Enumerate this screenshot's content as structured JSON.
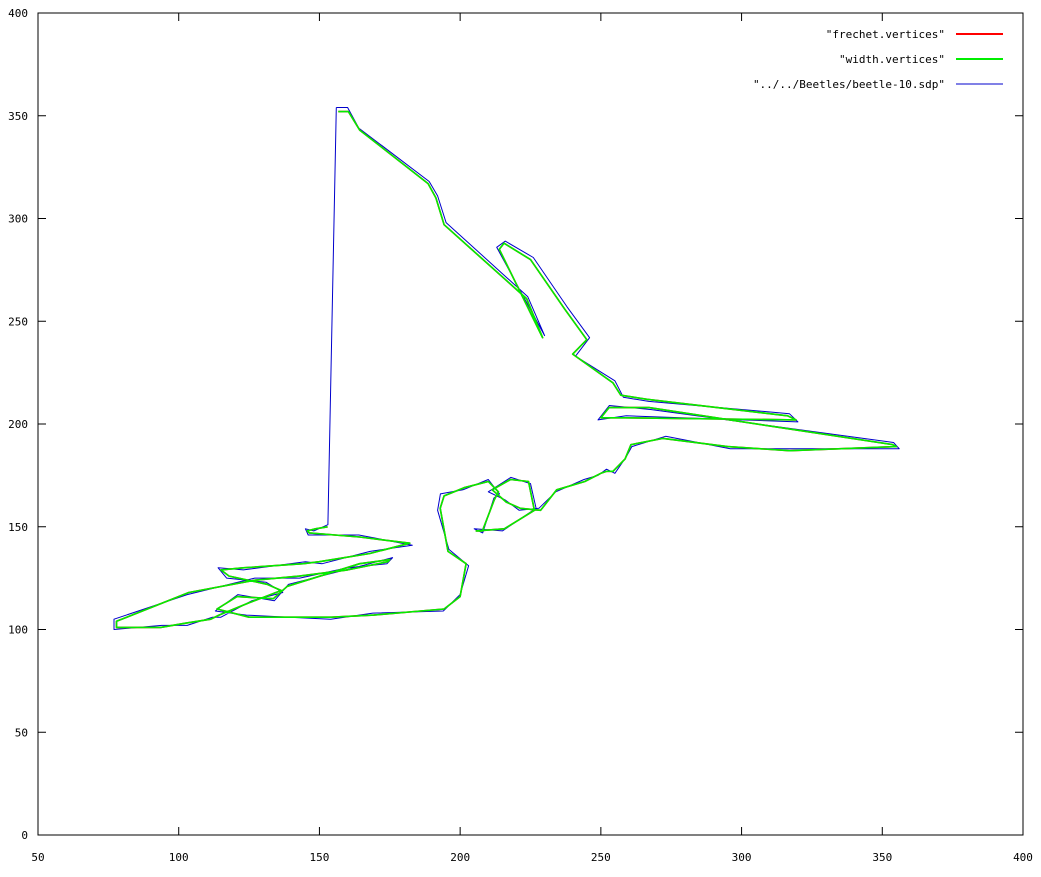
{
  "chart_data": {
    "type": "line",
    "title": "",
    "xlabel": "",
    "ylabel": "",
    "xlim": [
      50,
      400
    ],
    "ylim": [
      0,
      400
    ],
    "x_ticks": [
      50,
      100,
      150,
      200,
      250,
      300,
      350,
      400
    ],
    "y_ticks": [
      0,
      50,
      100,
      150,
      200,
      250,
      300,
      350,
      400
    ],
    "grid": false,
    "legend_position": "top-right",
    "series": [
      {
        "name": "\"frechet.vertices\"",
        "color": "#ff0000",
        "x": [
          156.7,
          160.3,
          164.3,
          188.6,
          191.4,
          194.3,
          223.6,
          229.3,
          213.9,
          215.6,
          225.0,
          237.1,
          245.0,
          240.0,
          254.3,
          257.1,
          266.4,
          316.4,
          319.3,
          258.6,
          250.0,
          252.9,
          267.1,
          353.6,
          355.0,
          317.1,
          295.0,
          272.1,
          260.7,
          258.6,
          254.3,
          252.1,
          250.0,
          244.3,
          234.3,
          228.6,
          221.4,
          216.4,
          211.4,
          217.9,
          224.3,
          226.4,
          215.7,
          205.7,
          207.9,
          212.1,
          213.6,
          210.0,
          201.4,
          194.3,
          192.9,
          195.7,
          202.1,
          200.0,
          194.3,
          169.3,
          154.3,
          125.0,
          113.6,
          120.7,
          133.6,
          138.6,
          164.3,
          175.0,
          174.3,
          160.0,
          142.9,
          127.1,
          103.6,
          77.9,
          77.9,
          93.6,
          102.1,
          111.4,
          114.3,
          125.0,
          136.4,
          131.4,
          117.9,
          115.0,
          122.9,
          144.3,
          150.0,
          167.9,
          182.1,
          164.3,
          146.4,
          145.7,
          148.6,
          152.9
        ],
        "y": [
          352.0,
          352.0,
          343.0,
          317.0,
          310.0,
          297.0,
          261.0,
          242.0,
          285.0,
          288.0,
          280.0,
          256.0,
          241.0,
          234.0,
          220.0,
          214.0,
          212.0,
          204.0,
          202.0,
          203.0,
          203.0,
          208.0,
          208.0,
          190.0,
          189.0,
          187.0,
          189.0,
          193.0,
          190.0,
          183.0,
          177.0,
          177.0,
          176.0,
          172.0,
          168.0,
          158.0,
          159.0,
          162.0,
          168.0,
          173.0,
          172.0,
          158.0,
          149.0,
          148.0,
          148.0,
          163.0,
          167.0,
          172.0,
          169.0,
          165.0,
          159.0,
          138.0,
          132.0,
          116.0,
          110.0,
          107.0,
          106.0,
          106.0,
          110.0,
          116.0,
          115.0,
          121.0,
          132.0,
          134.0,
          133.0,
          129.0,
          126.0,
          124.0,
          118.0,
          104.0,
          101.0,
          101.0,
          103.0,
          105.0,
          107.0,
          113.0,
          119.0,
          122.0,
          126.0,
          129.0,
          130.0,
          132.0,
          133.0,
          137.0,
          142.0,
          145.0,
          147.0,
          148.0,
          149.0,
          150.0
        ]
      },
      {
        "name": "\"width.vertices\"",
        "color": "#00ee00",
        "x": [
          156.7,
          160.3,
          164.3,
          188.6,
          191.4,
          194.3,
          223.6,
          229.3,
          213.9,
          215.6,
          225.0,
          237.1,
          245.0,
          240.0,
          254.3,
          257.1,
          266.4,
          316.4,
          319.3,
          258.6,
          250.0,
          252.9,
          267.1,
          353.6,
          355.0,
          317.1,
          295.0,
          272.1,
          260.7,
          258.6,
          254.3,
          252.1,
          250.0,
          244.3,
          234.3,
          228.6,
          221.4,
          216.4,
          211.4,
          217.9,
          224.3,
          226.4,
          215.7,
          205.7,
          207.9,
          212.1,
          213.6,
          210.0,
          201.4,
          194.3,
          192.9,
          195.7,
          202.1,
          200.0,
          194.3,
          169.3,
          154.3,
          125.0,
          113.6,
          120.7,
          133.6,
          138.6,
          164.3,
          175.0,
          174.3,
          160.0,
          142.9,
          127.1,
          103.6,
          77.9,
          77.9,
          93.6,
          102.1,
          111.4,
          114.3,
          125.0,
          136.4,
          131.4,
          117.9,
          115.0,
          122.9,
          144.3,
          150.0,
          167.9,
          182.1,
          164.3,
          146.4,
          145.7,
          148.6,
          152.9
        ],
        "y": [
          352.0,
          352.0,
          343.0,
          317.0,
          310.0,
          297.0,
          261.0,
          242.0,
          285.0,
          288.0,
          280.0,
          256.0,
          241.0,
          234.0,
          220.0,
          214.0,
          212.0,
          204.0,
          202.0,
          203.0,
          203.0,
          208.0,
          208.0,
          190.0,
          189.0,
          187.0,
          189.0,
          193.0,
          190.0,
          183.0,
          177.0,
          177.0,
          176.0,
          172.0,
          168.0,
          158.0,
          159.0,
          162.0,
          168.0,
          173.0,
          172.0,
          158.0,
          149.0,
          148.0,
          148.0,
          163.0,
          167.0,
          172.0,
          169.0,
          165.0,
          159.0,
          138.0,
          132.0,
          116.0,
          110.0,
          107.0,
          106.0,
          106.0,
          110.0,
          116.0,
          115.0,
          121.0,
          132.0,
          134.0,
          133.0,
          129.0,
          126.0,
          124.0,
          118.0,
          104.0,
          101.0,
          101.0,
          103.0,
          105.0,
          107.0,
          113.0,
          119.0,
          122.0,
          126.0,
          129.0,
          130.0,
          132.0,
          133.0,
          137.0,
          142.0,
          145.0,
          147.0,
          148.0,
          149.0,
          150.0
        ]
      },
      {
        "name": "\"../../Beetles/beetle-10.sdp\"",
        "color": "#0000cc",
        "x": [
          156.0,
          160.0,
          164.0,
          189.0,
          192.0,
          195.0,
          224.0,
          230.0,
          213.0,
          216.0,
          226.0,
          238.0,
          246.0,
          241.0,
          255.0,
          258.0,
          267.0,
          317.0,
          320.0,
          259.0,
          249.0,
          253.0,
          268.0,
          354.0,
          356.0,
          318.0,
          296.0,
          273.0,
          261.0,
          259.0,
          255.0,
          252.0,
          249.0,
          244.0,
          234.0,
          228.0,
          221.0,
          216.0,
          210.0,
          218.0,
          225.0,
          227.0,
          215.0,
          205.0,
          208.0,
          212.0,
          214.0,
          210.0,
          201.0,
          193.0,
          192.0,
          196.0,
          203.0,
          200.0,
          194.0,
          169.0,
          154.0,
          124.0,
          113.0,
          121.0,
          134.0,
          139.0,
          165.0,
          176.0,
          174.0,
          160.0,
          143.0,
          127.0,
          103.0,
          77.0,
          77.0,
          94.0,
          103.0,
          112.0,
          115.0,
          126.0,
          137.0,
          131.0,
          117.0,
          114.0,
          123.0,
          145.0,
          151.0,
          168.0,
          183.0,
          164.0,
          146.0,
          145.0,
          148.0,
          153.0,
          156.0
        ],
        "y": [
          354.0,
          354.0,
          344.0,
          318.0,
          311.0,
          298.0,
          262.0,
          243.0,
          286.0,
          289.0,
          281.0,
          257.0,
          242.0,
          233.0,
          221.0,
          213.0,
          211.0,
          205.0,
          201.0,
          204.0,
          202.0,
          209.0,
          207.0,
          191.0,
          188.0,
          188.0,
          188.0,
          194.0,
          189.0,
          184.0,
          176.0,
          178.0,
          175.0,
          173.0,
          167.0,
          159.0,
          158.0,
          163.0,
          167.0,
          174.0,
          171.0,
          159.0,
          148.0,
          149.0,
          147.0,
          164.0,
          166.0,
          173.0,
          168.0,
          166.0,
          158.0,
          139.0,
          131.0,
          117.0,
          109.0,
          108.0,
          105.0,
          107.0,
          109.0,
          117.0,
          114.0,
          122.0,
          131.0,
          135.0,
          132.0,
          130.0,
          125.0,
          125.0,
          117.0,
          105.0,
          100.0,
          102.0,
          102.0,
          106.0,
          106.0,
          114.0,
          118.0,
          123.0,
          125.0,
          130.0,
          129.0,
          133.0,
          132.0,
          138.0,
          141.0,
          146.0,
          146.0,
          149.0,
          148.0,
          151.0,
          354.0
        ]
      }
    ]
  }
}
